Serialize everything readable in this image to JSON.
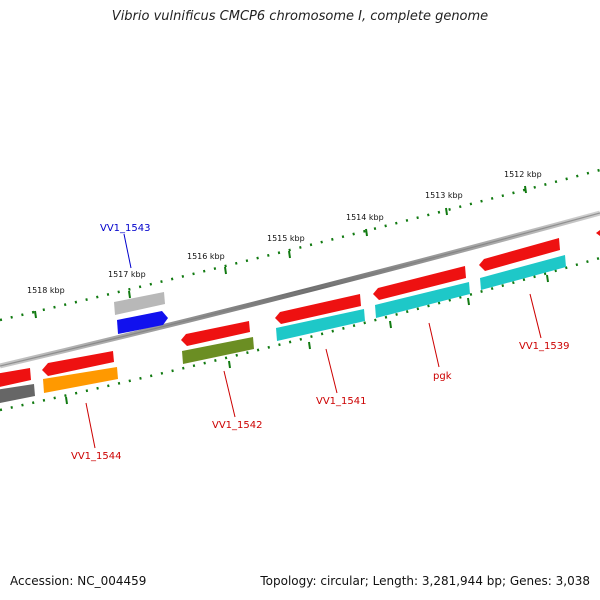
{
  "title": "Vibrio vulnificus CMCP6 chromosome I, complete genome",
  "footer": {
    "accession": "Accession: NC_004459",
    "summary": "Topology: circular; Length: 3,281,944 bp; Genes: 3,038"
  },
  "colors": {
    "red": "#ee1111",
    "cyan": "#1ec8c8",
    "gray": "#b8b8b8",
    "blue": "#1111ee",
    "olive": "#6b8e23",
    "orange": "#ff9900",
    "darkgray": "#666666",
    "backbone": "#8a8a8a",
    "tick": "#117a11",
    "label_red": "#cc0000",
    "label_blue": "#0000cc"
  },
  "ticks": [
    {
      "label": "1512 kbp"
    },
    {
      "label": "1513 kbp"
    },
    {
      "label": "1514 kbp"
    },
    {
      "label": "1515 kbp"
    },
    {
      "label": "1516 kbp"
    },
    {
      "label": "1517 kbp"
    },
    {
      "label": "1518 kbp"
    }
  ],
  "genes": [
    {
      "name": "VV1_1539",
      "color": "label_red"
    },
    {
      "name": "pgk",
      "color": "label_red"
    },
    {
      "name": "VV1_1541",
      "color": "label_red"
    },
    {
      "name": "VV1_1542",
      "color": "label_red"
    },
    {
      "name": "VV1_1543",
      "color": "label_blue"
    },
    {
      "name": "VV1_1544",
      "color": "label_red"
    }
  ]
}
